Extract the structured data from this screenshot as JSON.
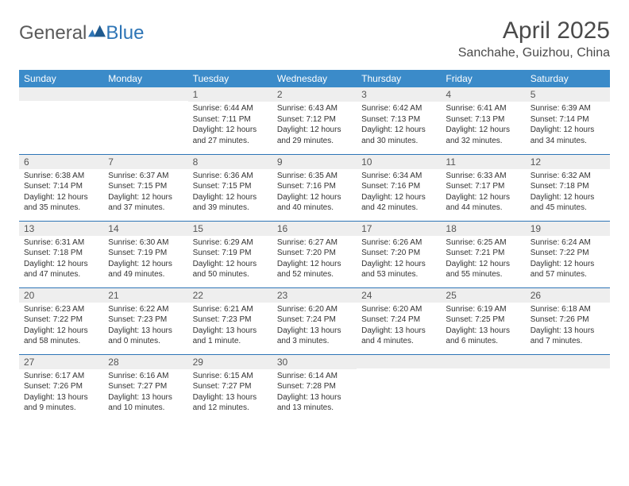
{
  "logo": {
    "word1": "General",
    "word2": "Blue"
  },
  "title": "April 2025",
  "location": "Sanchahe, Guizhou, China",
  "colors": {
    "header_bg": "#3b8bc9",
    "rule": "#2e75b6",
    "daynum_bg": "#eeeeee",
    "text": "#333333",
    "logo_gray": "#5a5a5a"
  },
  "weekdays": [
    "Sunday",
    "Monday",
    "Tuesday",
    "Wednesday",
    "Thursday",
    "Friday",
    "Saturday"
  ],
  "layout": {
    "rows": 5,
    "cols": 7,
    "first_weekday_index": 2,
    "days_in_month": 30
  },
  "days": {
    "1": {
      "sunrise": "6:44 AM",
      "sunset": "7:11 PM",
      "daylight": "12 hours and 27 minutes."
    },
    "2": {
      "sunrise": "6:43 AM",
      "sunset": "7:12 PM",
      "daylight": "12 hours and 29 minutes."
    },
    "3": {
      "sunrise": "6:42 AM",
      "sunset": "7:13 PM",
      "daylight": "12 hours and 30 minutes."
    },
    "4": {
      "sunrise": "6:41 AM",
      "sunset": "7:13 PM",
      "daylight": "12 hours and 32 minutes."
    },
    "5": {
      "sunrise": "6:39 AM",
      "sunset": "7:14 PM",
      "daylight": "12 hours and 34 minutes."
    },
    "6": {
      "sunrise": "6:38 AM",
      "sunset": "7:14 PM",
      "daylight": "12 hours and 35 minutes."
    },
    "7": {
      "sunrise": "6:37 AM",
      "sunset": "7:15 PM",
      "daylight": "12 hours and 37 minutes."
    },
    "8": {
      "sunrise": "6:36 AM",
      "sunset": "7:15 PM",
      "daylight": "12 hours and 39 minutes."
    },
    "9": {
      "sunrise": "6:35 AM",
      "sunset": "7:16 PM",
      "daylight": "12 hours and 40 minutes."
    },
    "10": {
      "sunrise": "6:34 AM",
      "sunset": "7:16 PM",
      "daylight": "12 hours and 42 minutes."
    },
    "11": {
      "sunrise": "6:33 AM",
      "sunset": "7:17 PM",
      "daylight": "12 hours and 44 minutes."
    },
    "12": {
      "sunrise": "6:32 AM",
      "sunset": "7:18 PM",
      "daylight": "12 hours and 45 minutes."
    },
    "13": {
      "sunrise": "6:31 AM",
      "sunset": "7:18 PM",
      "daylight": "12 hours and 47 minutes."
    },
    "14": {
      "sunrise": "6:30 AM",
      "sunset": "7:19 PM",
      "daylight": "12 hours and 49 minutes."
    },
    "15": {
      "sunrise": "6:29 AM",
      "sunset": "7:19 PM",
      "daylight": "12 hours and 50 minutes."
    },
    "16": {
      "sunrise": "6:27 AM",
      "sunset": "7:20 PM",
      "daylight": "12 hours and 52 minutes."
    },
    "17": {
      "sunrise": "6:26 AM",
      "sunset": "7:20 PM",
      "daylight": "12 hours and 53 minutes."
    },
    "18": {
      "sunrise": "6:25 AM",
      "sunset": "7:21 PM",
      "daylight": "12 hours and 55 minutes."
    },
    "19": {
      "sunrise": "6:24 AM",
      "sunset": "7:22 PM",
      "daylight": "12 hours and 57 minutes."
    },
    "20": {
      "sunrise": "6:23 AM",
      "sunset": "7:22 PM",
      "daylight": "12 hours and 58 minutes."
    },
    "21": {
      "sunrise": "6:22 AM",
      "sunset": "7:23 PM",
      "daylight": "13 hours and 0 minutes."
    },
    "22": {
      "sunrise": "6:21 AM",
      "sunset": "7:23 PM",
      "daylight": "13 hours and 1 minute."
    },
    "23": {
      "sunrise": "6:20 AM",
      "sunset": "7:24 PM",
      "daylight": "13 hours and 3 minutes."
    },
    "24": {
      "sunrise": "6:20 AM",
      "sunset": "7:24 PM",
      "daylight": "13 hours and 4 minutes."
    },
    "25": {
      "sunrise": "6:19 AM",
      "sunset": "7:25 PM",
      "daylight": "13 hours and 6 minutes."
    },
    "26": {
      "sunrise": "6:18 AM",
      "sunset": "7:26 PM",
      "daylight": "13 hours and 7 minutes."
    },
    "27": {
      "sunrise": "6:17 AM",
      "sunset": "7:26 PM",
      "daylight": "13 hours and 9 minutes."
    },
    "28": {
      "sunrise": "6:16 AM",
      "sunset": "7:27 PM",
      "daylight": "13 hours and 10 minutes."
    },
    "29": {
      "sunrise": "6:15 AM",
      "sunset": "7:27 PM",
      "daylight": "13 hours and 12 minutes."
    },
    "30": {
      "sunrise": "6:14 AM",
      "sunset": "7:28 PM",
      "daylight": "13 hours and 13 minutes."
    }
  },
  "labels": {
    "sunrise": "Sunrise: ",
    "sunset": "Sunset: ",
    "daylight": "Daylight: "
  }
}
